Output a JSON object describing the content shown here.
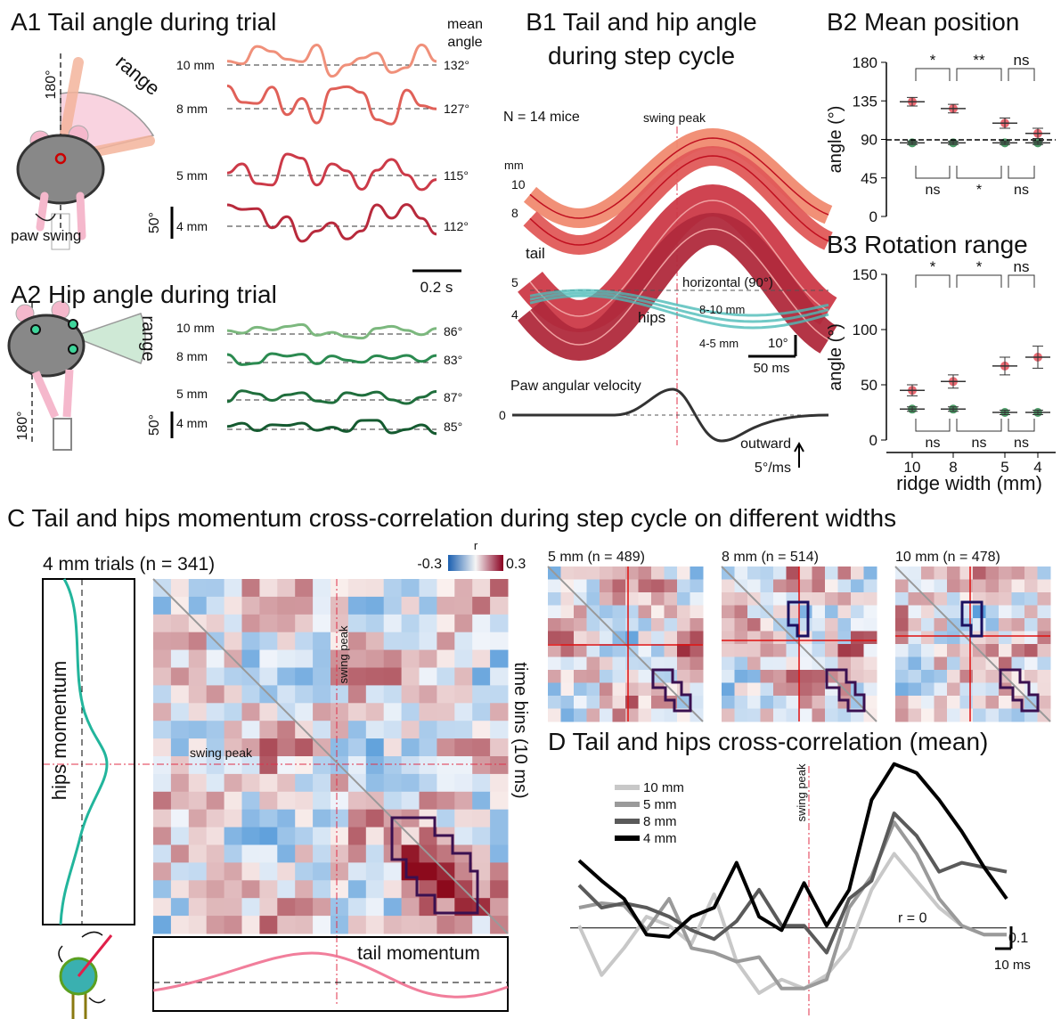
{
  "a1": {
    "title": "A1 Tail angle during trial",
    "mean_label": [
      "mean",
      "angle"
    ],
    "range": "range",
    "angle_180": "180°",
    "paw_swing": "paw swing",
    "rows": [
      {
        "width": "10 mm",
        "angle": "132°"
      },
      {
        "width": "8 mm",
        "angle": "127°"
      },
      {
        "width": "5 mm",
        "angle": "115°"
      },
      {
        "width": "4 mm",
        "angle": "112°"
      }
    ],
    "scale_y": "50°",
    "scale_x": "0.2 s"
  },
  "a2": {
    "title": "A2 Hip angle during trial",
    "range": "range",
    "angle_180": "180°",
    "rows": [
      {
        "width": "10 mm",
        "angle": "86°"
      },
      {
        "width": "8 mm",
        "angle": "83°"
      },
      {
        "width": "5 mm",
        "angle": "87°"
      },
      {
        "width": "4 mm",
        "angle": "85°"
      }
    ],
    "scale_y": "50°"
  },
  "b1": {
    "title": [
      "B1 Tail and hip angle",
      "during step cycle"
    ],
    "n": "N = 14 mice",
    "swing_peak": "swing peak",
    "mm": "mm",
    "widths": [
      "10",
      "8",
      "5",
      "4"
    ],
    "tail": "tail",
    "horizontal": "horizontal (90°)",
    "hips": "hips",
    "hip_groups": [
      "8-10 mm",
      "4-5 mm"
    ],
    "scale_y": "10°",
    "scale_x": "50 ms",
    "velocity": "Paw angular velocity",
    "zero": "0",
    "outward": "outward",
    "velocity_scale": "5°/ms"
  },
  "b2": {
    "title": "B2 Mean position",
    "y_label": "angle (°)",
    "ylim": [
      0,
      180
    ],
    "yticks": [
      0,
      45,
      90,
      135,
      180
    ],
    "tail": {
      "color": "#e8505a",
      "values": [
        134,
        126,
        109,
        97
      ],
      "errors": [
        5,
        5,
        6,
        6
      ]
    },
    "hips": {
      "color": "#2e8b4e",
      "values": [
        86,
        86,
        86,
        86
      ],
      "errors": [
        2,
        2,
        2,
        2
      ]
    },
    "stats_top": [
      "*",
      "**",
      "ns"
    ],
    "stats_bottom": [
      "ns",
      "*",
      "ns"
    ]
  },
  "b3": {
    "title": "B3 Rotation range",
    "y_label": "angle (°)",
    "ylim": [
      0,
      150
    ],
    "yticks": [
      0,
      50,
      100,
      150
    ],
    "categories": [
      "10",
      "8",
      "5",
      "4"
    ],
    "x_label": "ridge width (mm)",
    "tail": {
      "color": "#e8505a",
      "values": [
        45,
        53,
        67,
        75
      ],
      "errors": [
        5,
        6,
        8,
        10
      ]
    },
    "hips": {
      "color": "#2e8b4e",
      "values": [
        28,
        28,
        25,
        25
      ],
      "errors": [
        2,
        2,
        2,
        2
      ]
    },
    "stats_top": [
      "*",
      "*",
      "ns"
    ],
    "stats_bottom": [
      "ns",
      "ns",
      "ns"
    ]
  },
  "c": {
    "title": "C Tail and hips momentum cross-correlation during step cycle on different widths",
    "main": {
      "title": "4 mm trials (n = 341)",
      "colorbar": {
        "label": "r",
        "min": -0.3,
        "max": 0.3
      },
      "swing_peak": [
        "swing peak",
        "swing peak"
      ],
      "hips": "hips momentum",
      "time_bins": "time bins (10 ms)",
      "tail": "tail momentum"
    },
    "small": [
      "5 mm (n = 489)",
      "8 mm (n = 514)",
      "10 mm (n = 478)"
    ]
  },
  "d": {
    "title": "D Tail and hips cross-correlation (mean)",
    "swing_peak": "swing peak",
    "zero_label": "r = 0",
    "scale_y": "0.1",
    "scale_x": "10 ms",
    "ylim": [
      -0.35,
      0.8
    ],
    "series": [
      {
        "name": "10 mm",
        "color": "#c8c8c8",
        "values": [
          0.01,
          -0.21,
          -0.09,
          0.05,
          0.01,
          -0.07,
          0.15,
          -0.15,
          -0.29,
          -0.23,
          -0.27,
          -0.21,
          -0.09,
          0.17,
          0.33,
          0.21,
          0.09,
          0.01,
          -0.03,
          -0.03
        ]
      },
      {
        "name": "5 mm",
        "color": "#9a9a9a",
        "values": [
          0.09,
          0.11,
          0.1,
          -0.01,
          0.13,
          -0.09,
          -0.11,
          -0.15,
          -0.13,
          -0.27,
          -0.27,
          -0.23,
          0.09,
          0.23,
          0.47,
          0.33,
          0.13,
          0.01,
          -0.03,
          -0.03
        ]
      },
      {
        "name": "8 mm",
        "color": "#5a5a5a",
        "values": [
          0.19,
          0.09,
          0.11,
          0.09,
          0.05,
          -0.01,
          -0.05,
          0.03,
          0.17,
          0.01,
          0.01,
          -0.11,
          0.13,
          0.21,
          0.51,
          0.41,
          0.25,
          0.29,
          0.27,
          0.25
        ]
      },
      {
        "name": "4 mm",
        "color": "#000000",
        "values": [
          0.3,
          0.21,
          0.13,
          -0.03,
          -0.04,
          0.05,
          0.09,
          0.29,
          0.05,
          -0.01,
          0.2,
          0.01,
          0.17,
          0.57,
          0.73,
          0.69,
          0.57,
          0.43,
          0.27,
          0.13
        ]
      }
    ]
  }
}
